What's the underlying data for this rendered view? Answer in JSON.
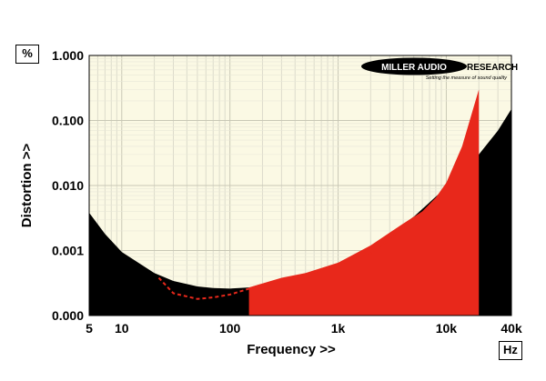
{
  "chart_data": {
    "type": "area",
    "title": "",
    "xlabel": "Frequency >>",
    "ylabel": "Distortion >>",
    "y_unit": "%",
    "x_unit": "Hz",
    "x_scale": "log",
    "y_scale": "log",
    "xlim": [
      5,
      40000
    ],
    "ylim": [
      0.0001,
      1.0
    ],
    "x_ticks": [
      {
        "value": 5,
        "label": "5"
      },
      {
        "value": 10,
        "label": "10"
      },
      {
        "value": 100,
        "label": "100"
      },
      {
        "value": 1000,
        "label": "1k"
      },
      {
        "value": 10000,
        "label": "10k"
      },
      {
        "value": 40000,
        "label": "40k"
      }
    ],
    "y_ticks": [
      {
        "value": 0.0001,
        "label": "0.000"
      },
      {
        "value": 0.001,
        "label": "0.001"
      },
      {
        "value": 0.01,
        "label": "0.010"
      },
      {
        "value": 0.1,
        "label": "0.100"
      },
      {
        "value": 1.0,
        "label": "1.000"
      }
    ],
    "grid": true,
    "background_color": "#fbf9e4",
    "logo": {
      "brand": "MILLER AUDIO RESEARCH",
      "tagline": "Setting the measure of sound quality"
    },
    "series": [
      {
        "color": "#000000",
        "style": "filled-area",
        "points": [
          [
            5,
            0.0038
          ],
          [
            7,
            0.0018
          ],
          [
            10,
            0.00095
          ],
          [
            20,
            0.00045
          ],
          [
            30,
            0.00034
          ],
          [
            50,
            0.00028
          ],
          [
            70,
            0.000265
          ],
          [
            100,
            0.00026
          ],
          [
            150,
            0.00027
          ],
          [
            200,
            0.00029
          ],
          [
            300,
            0.00033
          ],
          [
            500,
            0.0004
          ],
          [
            700,
            0.00048
          ],
          [
            1000,
            0.00062
          ],
          [
            2000,
            0.0011
          ],
          [
            3000,
            0.0018
          ],
          [
            5000,
            0.0033
          ],
          [
            7000,
            0.0055
          ],
          [
            10000,
            0.0095
          ],
          [
            20000,
            0.03
          ],
          [
            30000,
            0.07
          ],
          [
            40000,
            0.15
          ]
        ]
      },
      {
        "color": "#e8281b",
        "style": "filled-area",
        "points": [
          [
            150,
            0.00027
          ],
          [
            300,
            0.00038
          ],
          [
            500,
            0.00045
          ],
          [
            1000,
            0.00065
          ],
          [
            2000,
            0.0012
          ],
          [
            4000,
            0.0026
          ],
          [
            6000,
            0.004
          ],
          [
            8000,
            0.0065
          ],
          [
            10000,
            0.011
          ],
          [
            14000,
            0.04
          ],
          [
            20000,
            0.3
          ]
        ]
      },
      {
        "color": "#e8281b",
        "style": "dashed-line",
        "points": [
          [
            22,
            0.00038
          ],
          [
            30,
            0.00022
          ],
          [
            50,
            0.00018
          ],
          [
            70,
            0.00019
          ],
          [
            100,
            0.00021
          ],
          [
            200,
            0.0003
          ],
          [
            500,
            0.00042
          ],
          [
            1000,
            0.0006
          ],
          [
            2000,
            0.0009
          ],
          [
            3000,
            0.0015
          ],
          [
            5000,
            0.0032
          ]
        ]
      }
    ]
  }
}
